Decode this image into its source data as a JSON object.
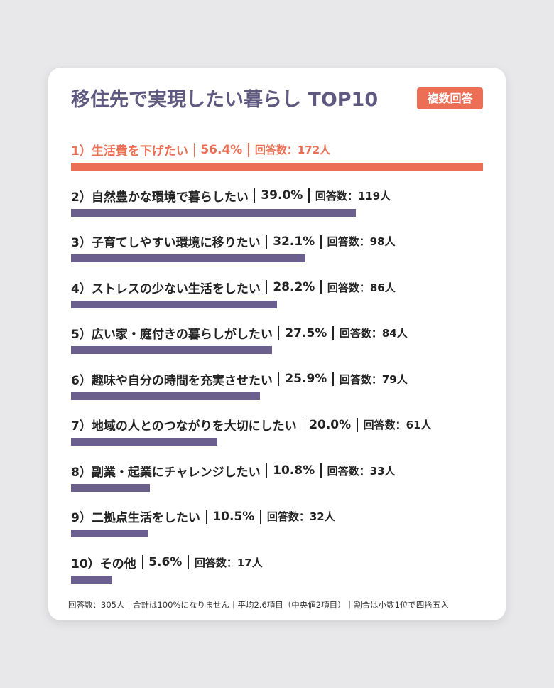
{
  "chart_data": {
    "type": "bar",
    "orientation": "horizontal",
    "title": "移住先で実現したい暮らし TOP10",
    "badge": "複数回答",
    "ranks": [
      "1）",
      "2）",
      "3）",
      "4）",
      "5）",
      "6）",
      "7）",
      "8）",
      "9）",
      "10）"
    ],
    "categories": [
      "生活費を下げたい",
      "自然豊かな環境で暮らしたい",
      "子育てしやすい環境に移りたい",
      "ストレスの少ない生活をしたい",
      "広い家・庭付きの暮らしがしたい",
      "趣味や自分の時間を充実させたい",
      "地域の人とのつながりを大切にしたい",
      "副業・起業にチャレンジしたい",
      "二拠点生活をしたい",
      "その他"
    ],
    "values": [
      56.4,
      39.0,
      32.1,
      28.2,
      27.5,
      25.9,
      20.0,
      10.8,
      10.5,
      5.6
    ],
    "value_labels": [
      "56.4%",
      "39.0%",
      "32.1%",
      "28.2%",
      "27.5%",
      "25.9%",
      "20.0%",
      "10.8%",
      "10.5%",
      "5.6%"
    ],
    "count_labels": [
      "回答数：172人",
      "回答数：119人",
      "回答数：98人",
      "回答数：86人",
      "回答数：84人",
      "回答数：79人",
      "回答数：61人",
      "回答数：33人",
      "回答数：32人",
      "回答数：17人"
    ],
    "colors": [
      "#ec6f55",
      "#6b5f8e",
      "#6b5f8e",
      "#6b5f8e",
      "#6b5f8e",
      "#6b5f8e",
      "#6b5f8e",
      "#6b5f8e",
      "#6b5f8e",
      "#6b5f8e"
    ],
    "label_colors": [
      "#ec6f55",
      "#222222",
      "#222222",
      "#222222",
      "#222222",
      "#222222",
      "#222222",
      "#222222",
      "#222222",
      "#222222"
    ],
    "xlim": [
      0,
      56.4
    ],
    "footnote": "回答数：305人｜合計は100%になりません｜平均2.6項目（中央値2項目）｜割合は小数1位で四捨五入"
  }
}
